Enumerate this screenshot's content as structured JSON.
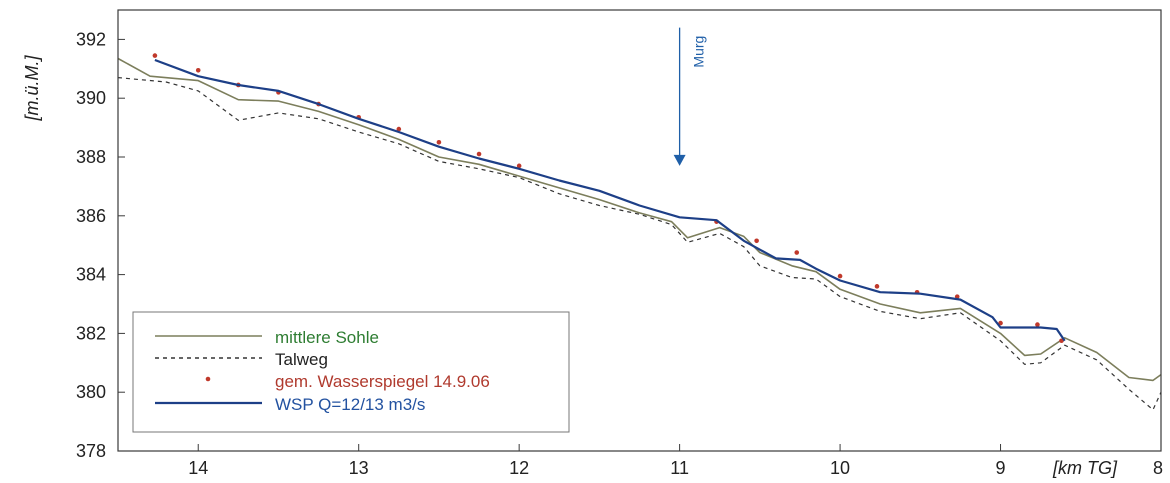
{
  "chart_data": {
    "type": "line",
    "x_axis": {
      "label": "[km TG]",
      "range": [
        14.5,
        8.0
      ],
      "reversed": true,
      "ticks": [
        14,
        13,
        12,
        11,
        10,
        9,
        8
      ]
    },
    "y_axis": {
      "label": "[m.ü.M.]",
      "range": [
        378,
        393
      ],
      "ticks": [
        378,
        380,
        382,
        384,
        386,
        388,
        390,
        392
      ]
    },
    "grid": false,
    "legend_position": "bottom-left",
    "annotation": {
      "text": "Murg",
      "x": 11.0,
      "y_from": 392.4,
      "y_to": 387.7,
      "color": "#1f5fa8"
    },
    "series": [
      {
        "name": "mittlere Sohle",
        "style": "solid",
        "color": "#7c7e5c",
        "legend_text_color": "#2e7d32",
        "points": [
          [
            14.5,
            391.35
          ],
          [
            14.3,
            390.75
          ],
          [
            14.0,
            390.6
          ],
          [
            13.75,
            389.95
          ],
          [
            13.5,
            389.9
          ],
          [
            13.25,
            389.55
          ],
          [
            13.0,
            389.1
          ],
          [
            12.75,
            388.6
          ],
          [
            12.5,
            388.0
          ],
          [
            12.25,
            387.75
          ],
          [
            12.0,
            387.35
          ],
          [
            11.75,
            386.95
          ],
          [
            11.5,
            386.55
          ],
          [
            11.25,
            386.1
          ],
          [
            11.05,
            385.8
          ],
          [
            10.95,
            385.25
          ],
          [
            10.75,
            385.6
          ],
          [
            10.6,
            385.3
          ],
          [
            10.5,
            384.75
          ],
          [
            10.3,
            384.3
          ],
          [
            10.15,
            384.1
          ],
          [
            10.0,
            383.5
          ],
          [
            9.75,
            383.0
          ],
          [
            9.5,
            382.7
          ],
          [
            9.25,
            382.85
          ],
          [
            9.0,
            382.0
          ],
          [
            8.85,
            381.25
          ],
          [
            8.75,
            381.3
          ],
          [
            8.6,
            381.85
          ],
          [
            8.4,
            381.35
          ],
          [
            8.2,
            380.5
          ],
          [
            8.05,
            380.4
          ],
          [
            8.0,
            380.6
          ]
        ]
      },
      {
        "name": "Talweg",
        "style": "dashed",
        "color": "#333333",
        "legend_text_color": "#222222",
        "points": [
          [
            14.5,
            390.7
          ],
          [
            14.2,
            390.55
          ],
          [
            14.0,
            390.25
          ],
          [
            13.75,
            389.25
          ],
          [
            13.5,
            389.5
          ],
          [
            13.25,
            389.3
          ],
          [
            13.0,
            388.85
          ],
          [
            12.75,
            388.45
          ],
          [
            12.5,
            387.85
          ],
          [
            12.25,
            387.6
          ],
          [
            12.0,
            387.3
          ],
          [
            11.75,
            386.75
          ],
          [
            11.5,
            386.35
          ],
          [
            11.25,
            386.05
          ],
          [
            11.05,
            385.7
          ],
          [
            10.95,
            385.1
          ],
          [
            10.75,
            385.4
          ],
          [
            10.6,
            384.95
          ],
          [
            10.5,
            384.3
          ],
          [
            10.3,
            383.9
          ],
          [
            10.15,
            383.85
          ],
          [
            10.0,
            383.25
          ],
          [
            9.75,
            382.75
          ],
          [
            9.5,
            382.5
          ],
          [
            9.25,
            382.7
          ],
          [
            9.0,
            381.75
          ],
          [
            8.85,
            380.95
          ],
          [
            8.75,
            381.0
          ],
          [
            8.6,
            381.6
          ],
          [
            8.4,
            381.1
          ],
          [
            8.2,
            380.1
          ],
          [
            8.05,
            379.4
          ],
          [
            8.0,
            380.0
          ]
        ]
      },
      {
        "name": "gem. Wasserspiegel 14.9.06",
        "style": "markers",
        "color": "#c0392b",
        "legend_text_color": "#b03a2e",
        "points": [
          [
            14.27,
            391.45
          ],
          [
            14.0,
            390.95
          ],
          [
            13.75,
            390.45
          ],
          [
            13.5,
            390.2
          ],
          [
            13.25,
            389.8
          ],
          [
            13.0,
            389.35
          ],
          [
            12.75,
            388.95
          ],
          [
            12.5,
            388.5
          ],
          [
            12.25,
            388.1
          ],
          [
            12.0,
            387.7
          ],
          [
            10.77,
            385.8
          ],
          [
            10.52,
            385.15
          ],
          [
            10.27,
            384.75
          ],
          [
            10.0,
            383.95
          ],
          [
            9.77,
            383.6
          ],
          [
            9.52,
            383.4
          ],
          [
            9.27,
            383.25
          ],
          [
            9.0,
            382.35
          ],
          [
            8.77,
            382.3
          ],
          [
            8.62,
            381.75
          ]
        ]
      },
      {
        "name": "WSP Q=12/13 m3/s",
        "style": "solid",
        "color": "#1d3f87",
        "legend_text_color": "#2352a0",
        "points": [
          [
            14.27,
            391.3
          ],
          [
            14.0,
            390.75
          ],
          [
            13.75,
            390.45
          ],
          [
            13.5,
            390.25
          ],
          [
            13.25,
            389.8
          ],
          [
            13.0,
            389.3
          ],
          [
            12.75,
            388.85
          ],
          [
            12.5,
            388.35
          ],
          [
            12.25,
            387.95
          ],
          [
            12.0,
            387.6
          ],
          [
            11.75,
            387.2
          ],
          [
            11.5,
            386.85
          ],
          [
            11.25,
            386.35
          ],
          [
            11.0,
            385.95
          ],
          [
            10.77,
            385.85
          ],
          [
            10.6,
            385.15
          ],
          [
            10.4,
            384.55
          ],
          [
            10.25,
            384.5
          ],
          [
            10.15,
            384.2
          ],
          [
            10.0,
            383.8
          ],
          [
            9.75,
            383.4
          ],
          [
            9.5,
            383.35
          ],
          [
            9.25,
            383.15
          ],
          [
            9.05,
            382.55
          ],
          [
            9.0,
            382.2
          ],
          [
            8.75,
            382.2
          ],
          [
            8.65,
            382.15
          ],
          [
            8.6,
            381.75
          ]
        ]
      }
    ]
  }
}
